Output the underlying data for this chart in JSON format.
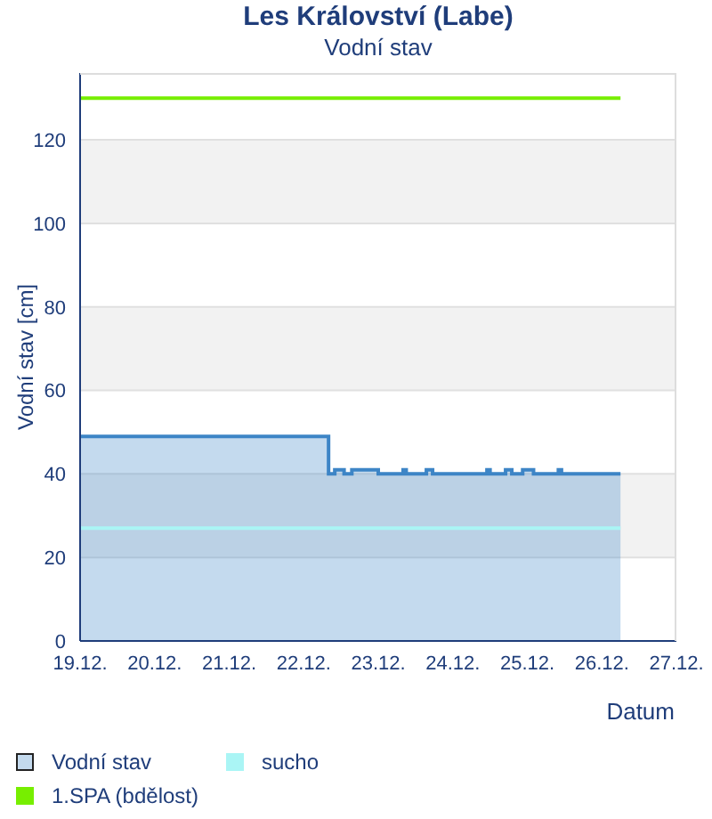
{
  "chart_data": {
    "type": "area",
    "title": "Les Království (Labe)",
    "subtitle": "Vodní stav",
    "xlabel": "Datum",
    "ylabel": "Vodní stav [cm]",
    "series": [
      {
        "name": "Vodní stav",
        "color": "#3d85c6",
        "x": [
          "--12-19T00:00",
          "--12-22T08:00",
          "--12-22T08:00",
          "--12-22T10:00",
          "--12-22T10:00",
          "--12-22T13:00",
          "--12-22T13:00",
          "--12-22T15:30",
          "--12-22T15:30",
          "--12-23T00:00",
          "--12-23T00:00",
          "--12-23T08:00",
          "--12-23T08:00",
          "--12-23T09:00",
          "--12-23T09:00",
          "--12-23T15:30",
          "--12-23T15:30",
          "--12-23T17:30",
          "--12-23T17:30",
          "--12-24T11:00",
          "--12-24T11:00",
          "--12-24T12:00",
          "--12-24T12:00",
          "--12-24T17:00",
          "--12-24T17:00",
          "--12-24T19:00",
          "--12-24T19:00",
          "--12-24T22:30",
          "--12-24T22:30",
          "--12-25T02:00",
          "--12-25T02:00",
          "--12-25T10:00",
          "--12-25T10:00",
          "--12-25T11:00",
          "--12-25T11:00",
          "--12-26T06:00"
        ],
        "values": [
          49,
          49,
          40,
          40,
          41,
          41,
          40,
          40,
          41,
          41,
          40,
          40,
          41,
          41,
          40,
          40,
          41,
          41,
          40,
          40,
          41,
          41,
          40,
          40,
          41,
          41,
          40,
          40,
          41,
          41,
          40,
          40,
          41,
          41,
          40,
          40
        ]
      },
      {
        "name": "sucho",
        "type": "line",
        "color": "#aaf5f5",
        "x": [
          "--12-19T00:00",
          "--12-26T06:00"
        ],
        "values": [
          27,
          27
        ]
      },
      {
        "name": "1.SPA (bdělost)",
        "type": "line",
        "color": "#77ee00",
        "x": [
          "--12-19T00:00",
          "--12-26T06:00"
        ],
        "values": [
          130,
          130
        ]
      }
    ],
    "xlim": [
      "--12-19",
      "--12-27"
    ],
    "xticks": [
      {
        "value": "--12-19",
        "label": "19.12."
      },
      {
        "value": "--12-20",
        "label": "20.12."
      },
      {
        "value": "--12-21",
        "label": "21.12."
      },
      {
        "value": "--12-22",
        "label": "22.12."
      },
      {
        "value": "--12-23",
        "label": "23.12."
      },
      {
        "value": "--12-24",
        "label": "24.12."
      },
      {
        "value": "--12-25",
        "label": "25.12."
      },
      {
        "value": "--12-26",
        "label": "26.12."
      },
      {
        "value": "--12-27",
        "label": "27.12."
      }
    ],
    "ylim": [
      0,
      136
    ],
    "yticks": [
      0,
      20,
      40,
      60,
      80,
      100,
      120
    ],
    "grid": "y",
    "legend": "bottom"
  }
}
